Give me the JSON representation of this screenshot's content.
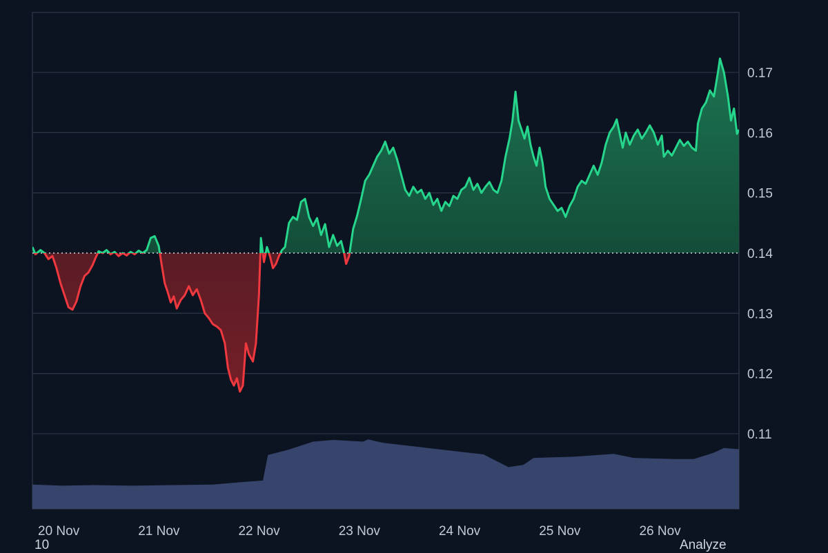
{
  "chart_data": {
    "type": "area",
    "title": "",
    "xlabel": "",
    "ylabel": "",
    "baseline": 0.14,
    "ylim": [
      0.1,
      0.18
    ],
    "y_ticks": [
      "0.11",
      "0.12",
      "0.13",
      "0.14",
      "0.15",
      "0.16",
      "0.17"
    ],
    "y_tick_values": [
      0.11,
      0.12,
      0.13,
      0.14,
      0.15,
      0.16,
      0.17
    ],
    "x_ticks": [
      "20 Nov",
      "21 Nov",
      "22 Nov",
      "23 Nov",
      "24 Nov",
      "25 Nov",
      "26 Nov"
    ],
    "xlim_days": [
      0,
      7.05
    ],
    "colors": {
      "up": "#26d68c",
      "down": "#f0383f",
      "volume": "#3a4872",
      "grid": "#2a3342",
      "background": "#0c1421"
    },
    "series": [
      {
        "values": [
          [
            0.0,
            0.141
          ],
          [
            0.03,
            0.1398
          ],
          [
            0.08,
            0.1405
          ],
          [
            0.12,
            0.14
          ],
          [
            0.16,
            0.139
          ],
          [
            0.2,
            0.1395
          ],
          [
            0.24,
            0.1375
          ],
          [
            0.28,
            0.135
          ],
          [
            0.32,
            0.133
          ],
          [
            0.36,
            0.131
          ],
          [
            0.4,
            0.1306
          ],
          [
            0.44,
            0.132
          ],
          [
            0.48,
            0.1345
          ],
          [
            0.52,
            0.1362
          ],
          [
            0.56,
            0.1368
          ],
          [
            0.6,
            0.138
          ],
          [
            0.63,
            0.1392
          ],
          [
            0.66,
            0.1403
          ],
          [
            0.7,
            0.14
          ],
          [
            0.74,
            0.1405
          ],
          [
            0.78,
            0.1398
          ],
          [
            0.82,
            0.1402
          ],
          [
            0.86,
            0.1395
          ],
          [
            0.9,
            0.14
          ],
          [
            0.94,
            0.1396
          ],
          [
            0.98,
            0.1402
          ],
          [
            1.02,
            0.1398
          ],
          [
            1.06,
            0.1404
          ],
          [
            1.1,
            0.14
          ],
          [
            1.14,
            0.1405
          ],
          [
            1.18,
            0.1425
          ],
          [
            1.22,
            0.1428
          ],
          [
            1.26,
            0.1412
          ],
          [
            1.29,
            0.138
          ],
          [
            1.32,
            0.135
          ],
          [
            1.35,
            0.1335
          ],
          [
            1.38,
            0.1318
          ],
          [
            1.41,
            0.1328
          ],
          [
            1.44,
            0.1308
          ],
          [
            1.48,
            0.1322
          ],
          [
            1.52,
            0.133
          ],
          [
            1.56,
            0.1345
          ],
          [
            1.6,
            0.133
          ],
          [
            1.64,
            0.134
          ],
          [
            1.68,
            0.1322
          ],
          [
            1.72,
            0.13
          ],
          [
            1.76,
            0.1292
          ],
          [
            1.8,
            0.1282
          ],
          [
            1.84,
            0.1278
          ],
          [
            1.88,
            0.1272
          ],
          [
            1.92,
            0.125
          ],
          [
            1.95,
            0.121
          ],
          [
            1.98,
            0.119
          ],
          [
            2.01,
            0.118
          ],
          [
            2.04,
            0.1192
          ],
          [
            2.07,
            0.117
          ],
          [
            2.1,
            0.118
          ],
          [
            2.13,
            0.125
          ],
          [
            2.16,
            0.1232
          ],
          [
            2.2,
            0.122
          ],
          [
            2.23,
            0.125
          ],
          [
            2.26,
            0.133
          ],
          [
            2.28,
            0.1425
          ],
          [
            2.31,
            0.1385
          ],
          [
            2.34,
            0.141
          ],
          [
            2.37,
            0.1395
          ],
          [
            2.4,
            0.1375
          ],
          [
            2.43,
            0.1382
          ],
          [
            2.46,
            0.1395
          ],
          [
            2.49,
            0.1405
          ],
          [
            2.52,
            0.141
          ],
          [
            2.56,
            0.145
          ],
          [
            2.6,
            0.146
          ],
          [
            2.64,
            0.1455
          ],
          [
            2.68,
            0.1485
          ],
          [
            2.72,
            0.149
          ],
          [
            2.76,
            0.146
          ],
          [
            2.8,
            0.1445
          ],
          [
            2.84,
            0.1458
          ],
          [
            2.88,
            0.143
          ],
          [
            2.92,
            0.1448
          ],
          [
            2.96,
            0.141
          ],
          [
            3.0,
            0.143
          ],
          [
            3.04,
            0.1412
          ],
          [
            3.08,
            0.142
          ],
          [
            3.11,
            0.14
          ],
          [
            3.13,
            0.1382
          ],
          [
            3.16,
            0.1395
          ],
          [
            3.2,
            0.144
          ],
          [
            3.24,
            0.1462
          ],
          [
            3.28,
            0.149
          ],
          [
            3.32,
            0.152
          ],
          [
            3.36,
            0.153
          ],
          [
            3.4,
            0.1545
          ],
          [
            3.44,
            0.156
          ],
          [
            3.48,
            0.157
          ],
          [
            3.52,
            0.1585
          ],
          [
            3.56,
            0.1565
          ],
          [
            3.6,
            0.1575
          ],
          [
            3.64,
            0.1555
          ],
          [
            3.68,
            0.153
          ],
          [
            3.72,
            0.1505
          ],
          [
            3.76,
            0.1495
          ],
          [
            3.8,
            0.151
          ],
          [
            3.84,
            0.15
          ],
          [
            3.88,
            0.1505
          ],
          [
            3.92,
            0.149
          ],
          [
            3.96,
            0.15
          ],
          [
            4.0,
            0.148
          ],
          [
            4.04,
            0.149
          ],
          [
            4.08,
            0.147
          ],
          [
            4.12,
            0.1485
          ],
          [
            4.16,
            0.1478
          ],
          [
            4.2,
            0.1495
          ],
          [
            4.24,
            0.149
          ],
          [
            4.28,
            0.1505
          ],
          [
            4.32,
            0.151
          ],
          [
            4.36,
            0.1525
          ],
          [
            4.4,
            0.1505
          ],
          [
            4.44,
            0.1515
          ],
          [
            4.48,
            0.15
          ],
          [
            4.52,
            0.151
          ],
          [
            4.56,
            0.1518
          ],
          [
            4.6,
            0.1505
          ],
          [
            4.64,
            0.15
          ],
          [
            4.68,
            0.152
          ],
          [
            4.72,
            0.156
          ],
          [
            4.76,
            0.159
          ],
          [
            4.79,
            0.162
          ],
          [
            4.82,
            0.1668
          ],
          [
            4.85,
            0.162
          ],
          [
            4.88,
            0.1605
          ],
          [
            4.91,
            0.159
          ],
          [
            4.94,
            0.161
          ],
          [
            4.97,
            0.158
          ],
          [
            5.0,
            0.156
          ],
          [
            5.03,
            0.1545
          ],
          [
            5.06,
            0.1575
          ],
          [
            5.09,
            0.155
          ],
          [
            5.12,
            0.151
          ],
          [
            5.16,
            0.149
          ],
          [
            5.2,
            0.148
          ],
          [
            5.24,
            0.147
          ],
          [
            5.28,
            0.1475
          ],
          [
            5.32,
            0.146
          ],
          [
            5.36,
            0.1478
          ],
          [
            5.4,
            0.149
          ],
          [
            5.44,
            0.151
          ],
          [
            5.48,
            0.152
          ],
          [
            5.52,
            0.1515
          ],
          [
            5.56,
            0.153
          ],
          [
            5.6,
            0.1545
          ],
          [
            5.64,
            0.153
          ],
          [
            5.68,
            0.155
          ],
          [
            5.72,
            0.158
          ],
          [
            5.76,
            0.16
          ],
          [
            5.8,
            0.161
          ],
          [
            5.83,
            0.1622
          ],
          [
            5.86,
            0.1598
          ],
          [
            5.89,
            0.1575
          ],
          [
            5.92,
            0.16
          ],
          [
            5.96,
            0.158
          ],
          [
            6.0,
            0.1595
          ],
          [
            6.04,
            0.1605
          ],
          [
            6.08,
            0.159
          ],
          [
            6.12,
            0.16
          ],
          [
            6.16,
            0.1612
          ],
          [
            6.2,
            0.16
          ],
          [
            6.24,
            0.158
          ],
          [
            6.28,
            0.1595
          ],
          [
            6.3,
            0.156
          ],
          [
            6.34,
            0.157
          ],
          [
            6.38,
            0.1562
          ],
          [
            6.42,
            0.1575
          ],
          [
            6.46,
            0.1588
          ],
          [
            6.5,
            0.1578
          ],
          [
            6.54,
            0.1585
          ],
          [
            6.58,
            0.1575
          ],
          [
            6.62,
            0.157
          ],
          [
            6.64,
            0.1615
          ],
          [
            6.68,
            0.164
          ],
          [
            6.72,
            0.165
          ],
          [
            6.76,
            0.167
          ],
          [
            6.8,
            0.166
          ],
          [
            6.84,
            0.17
          ],
          [
            6.86,
            0.1723
          ],
          [
            6.9,
            0.17
          ],
          [
            6.94,
            0.166
          ],
          [
            6.97,
            0.162
          ],
          [
            7.0,
            0.164
          ],
          [
            7.03,
            0.1598
          ],
          [
            7.05,
            0.1605
          ]
        ]
      }
    ],
    "volume": {
      "values": [
        [
          0.0,
          0.42
        ],
        [
          0.3,
          0.4
        ],
        [
          0.6,
          0.41
        ],
        [
          1.0,
          0.4
        ],
        [
          1.4,
          0.41
        ],
        [
          1.8,
          0.42
        ],
        [
          2.0,
          0.45
        ],
        [
          2.3,
          0.49
        ],
        [
          2.35,
          0.93
        ],
        [
          2.55,
          1.02
        ],
        [
          2.8,
          1.16
        ],
        [
          3.0,
          1.19
        ],
        [
          3.3,
          1.16
        ],
        [
          3.35,
          1.2
        ],
        [
          3.5,
          1.14
        ],
        [
          3.8,
          1.08
        ],
        [
          4.2,
          1.0
        ],
        [
          4.5,
          0.94
        ],
        [
          4.75,
          0.72
        ],
        [
          4.9,
          0.76
        ],
        [
          5.0,
          0.88
        ],
        [
          5.4,
          0.9
        ],
        [
          5.8,
          0.95
        ],
        [
          6.0,
          0.88
        ],
        [
          6.4,
          0.86
        ],
        [
          6.6,
          0.86
        ],
        [
          6.8,
          0.97
        ],
        [
          6.9,
          1.05
        ],
        [
          7.05,
          1.03
        ]
      ]
    }
  },
  "footer": {
    "left": "10",
    "right": "Analyze"
  }
}
